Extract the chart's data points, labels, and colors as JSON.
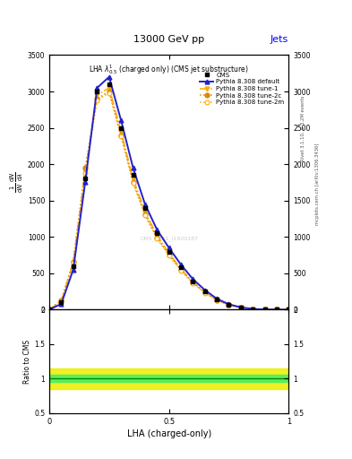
{
  "title_top": "13000 GeV pp",
  "title_right": "Jets",
  "plot_title": "LHA $\\lambda^{1}_{0.5}$ (charged only) (CMS jet substructure)",
  "xlabel": "LHA (charged-only)",
  "watermark": "CMS_2021_I1920187",
  "right_label1": "Rivet 3.1.10, ≥ 3.2M events",
  "right_label2": "mcplots.cern.ch [arXiv:1306.3436]",
  "x": [
    0.0,
    0.05,
    0.1,
    0.15,
    0.2,
    0.25,
    0.3,
    0.35,
    0.4,
    0.45,
    0.5,
    0.55,
    0.6,
    0.65,
    0.7,
    0.75,
    0.8,
    0.85,
    0.9,
    0.95,
    1.0
  ],
  "cms_y": [
    0,
    100,
    600,
    1800,
    3000,
    3100,
    2500,
    1850,
    1400,
    1050,
    800,
    580,
    390,
    250,
    140,
    70,
    30,
    10,
    3,
    1,
    0
  ],
  "default_y": [
    0,
    80,
    550,
    1750,
    3050,
    3200,
    2600,
    1950,
    1450,
    1100,
    850,
    620,
    420,
    270,
    150,
    75,
    32,
    10,
    3,
    1,
    0
  ],
  "tune1_y": [
    0,
    120,
    650,
    1900,
    2950,
    3050,
    2450,
    1800,
    1350,
    1020,
    780,
    560,
    380,
    240,
    135,
    68,
    29,
    9,
    3,
    1,
    0
  ],
  "tune2c_y": [
    0,
    130,
    660,
    1950,
    2900,
    3000,
    2400,
    1760,
    1310,
    990,
    755,
    545,
    370,
    235,
    130,
    65,
    28,
    9,
    2,
    1,
    0
  ],
  "tune2m_y": [
    0,
    115,
    640,
    1880,
    2880,
    2980,
    2380,
    1740,
    1295,
    975,
    745,
    538,
    365,
    230,
    128,
    63,
    27,
    9,
    2,
    1,
    0
  ],
  "color_blue": "#2222cc",
  "color_orange": "#ffaa00",
  "color_darkorange": "#dd8800",
  "ylim": [
    0,
    3500
  ],
  "yticks": [
    0,
    500,
    1000,
    1500,
    2000,
    2500,
    3000,
    3500
  ],
  "ratio_ylim": [
    0.5,
    2.0
  ],
  "ratio_yticks": [
    0.5,
    1.0,
    1.5,
    2.0
  ],
  "xlim": [
    0.0,
    1.0
  ],
  "xticks": [
    0.0,
    0.5,
    1.0
  ]
}
